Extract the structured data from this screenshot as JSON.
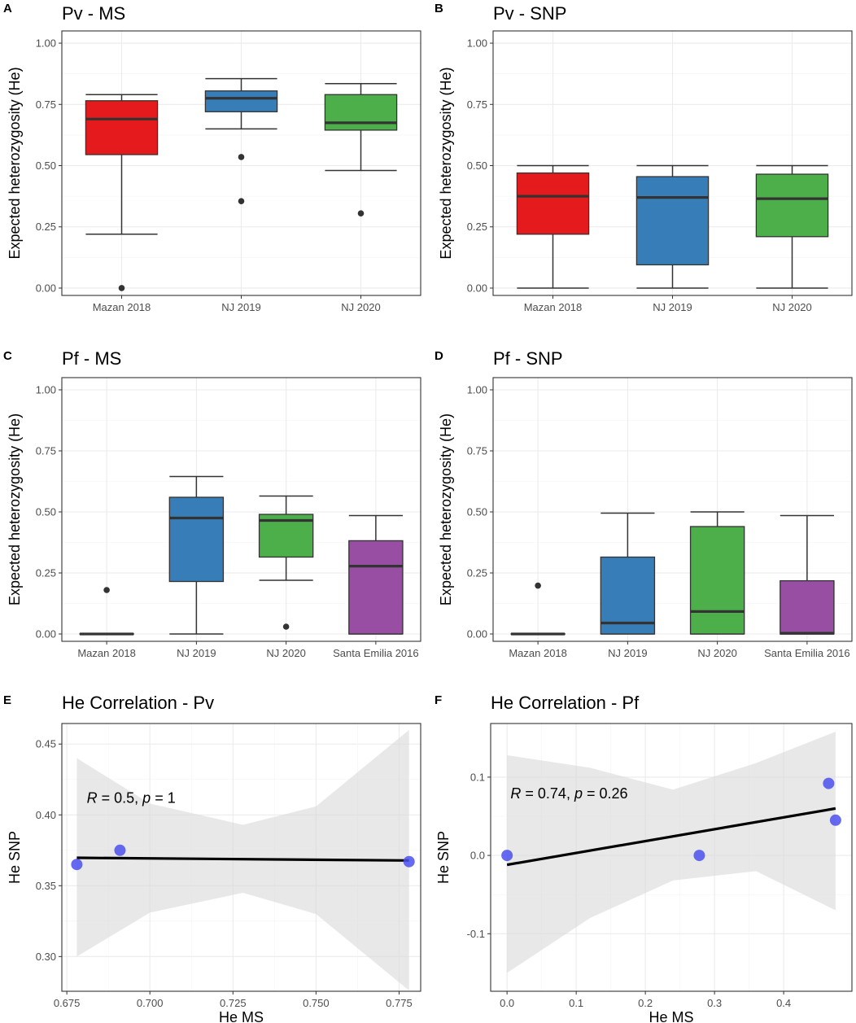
{
  "figure": {
    "chart_data": [
      {
        "panel": "A",
        "type": "box",
        "title": "Pv - MS",
        "ylabel": "Expected heterozygosity (He)",
        "xlabel": "",
        "ylim": [
          -0.03,
          1.05
        ],
        "yticks": [
          0,
          0.25,
          0.5,
          0.75,
          1
        ],
        "ytick_labels": [
          "0.00",
          "0.25",
          "0.50",
          "0.75",
          "1.00"
        ],
        "categories": [
          "Mazan 2018",
          "NJ 2019",
          "NJ 2020"
        ],
        "boxes": [
          {
            "category": "Mazan 2018",
            "color": "#e41a1c",
            "whisker_low": 0.22,
            "q1": 0.545,
            "median": 0.69,
            "q3": 0.765,
            "whisker_high": 0.79,
            "outliers": [
              0.0
            ]
          },
          {
            "category": "NJ 2019",
            "color": "#377eb8",
            "whisker_low": 0.65,
            "q1": 0.72,
            "median": 0.775,
            "q3": 0.805,
            "whisker_high": 0.855,
            "outliers": [
              0.535,
              0.355
            ]
          },
          {
            "category": "NJ 2020",
            "color": "#4daf4a",
            "whisker_low": 0.48,
            "q1": 0.645,
            "median": 0.675,
            "q3": 0.79,
            "whisker_high": 0.835,
            "outliers": [
              0.305
            ]
          }
        ]
      },
      {
        "panel": "B",
        "type": "box",
        "title": "Pv - SNP",
        "ylabel": "Expected heterozygosity (He)",
        "xlabel": "",
        "ylim": [
          -0.03,
          1.05
        ],
        "yticks": [
          0,
          0.25,
          0.5,
          0.75,
          1
        ],
        "ytick_labels": [
          "0.00",
          "0.25",
          "0.50",
          "0.75",
          "1.00"
        ],
        "categories": [
          "Mazan 2018",
          "NJ 2019",
          "NJ 2020"
        ],
        "boxes": [
          {
            "category": "Mazan 2018",
            "color": "#e41a1c",
            "whisker_low": 0.0,
            "q1": 0.22,
            "median": 0.375,
            "q3": 0.47,
            "whisker_high": 0.5,
            "outliers": []
          },
          {
            "category": "NJ 2019",
            "color": "#377eb8",
            "whisker_low": 0.0,
            "q1": 0.095,
            "median": 0.37,
            "q3": 0.455,
            "whisker_high": 0.5,
            "outliers": []
          },
          {
            "category": "NJ 2020",
            "color": "#4daf4a",
            "whisker_low": 0.0,
            "q1": 0.21,
            "median": 0.365,
            "q3": 0.465,
            "whisker_high": 0.5,
            "outliers": []
          }
        ]
      },
      {
        "panel": "C",
        "type": "box",
        "title": "Pf - MS",
        "ylabel": "Expected heterozygosity (He)",
        "xlabel": "",
        "ylim": [
          -0.03,
          1.05
        ],
        "yticks": [
          0,
          0.25,
          0.5,
          0.75,
          1
        ],
        "ytick_labels": [
          "0.00",
          "0.25",
          "0.50",
          "0.75",
          "1.00"
        ],
        "categories": [
          "Mazan 2018",
          "NJ 2019",
          "NJ 2020",
          "Santa Emilia 2016"
        ],
        "boxes": [
          {
            "category": "Mazan 2018",
            "color": "#e41a1c",
            "whisker_low": 0.0,
            "q1": 0.0,
            "median": 0.0,
            "q3": 0.0,
            "whisker_high": 0.0,
            "outliers": [
              0.18
            ]
          },
          {
            "category": "NJ 2019",
            "color": "#377eb8",
            "whisker_low": 0.0,
            "q1": 0.215,
            "median": 0.475,
            "q3": 0.56,
            "whisker_high": 0.645,
            "outliers": []
          },
          {
            "category": "NJ 2020",
            "color": "#4daf4a",
            "whisker_low": 0.22,
            "q1": 0.315,
            "median": 0.465,
            "q3": 0.49,
            "whisker_high": 0.565,
            "outliers": [
              0.03
            ]
          },
          {
            "category": "Santa Emilia 2016",
            "color": "#984ea3",
            "whisker_low": 0.0,
            "q1": 0.0,
            "median": 0.278,
            "q3": 0.382,
            "whisker_high": 0.485,
            "outliers": []
          }
        ]
      },
      {
        "panel": "D",
        "type": "box",
        "title": "Pf - SNP",
        "ylabel": "Expected heterozygosity (He)",
        "xlabel": "",
        "ylim": [
          -0.03,
          1.05
        ],
        "yticks": [
          0,
          0.25,
          0.5,
          0.75,
          1
        ],
        "ytick_labels": [
          "0.00",
          "0.25",
          "0.50",
          "0.75",
          "1.00"
        ],
        "categories": [
          "Mazan 2018",
          "NJ 2019",
          "NJ 2020",
          "Santa Emilia 2016"
        ],
        "boxes": [
          {
            "category": "Mazan 2018",
            "color": "#e41a1c",
            "whisker_low": 0.0,
            "q1": 0.0,
            "median": 0.0,
            "q3": 0.0,
            "whisker_high": 0.0,
            "outliers": [
              0.198
            ]
          },
          {
            "category": "NJ 2019",
            "color": "#377eb8",
            "whisker_low": 0.0,
            "q1": 0.0,
            "median": 0.045,
            "q3": 0.315,
            "whisker_high": 0.495,
            "outliers": []
          },
          {
            "category": "NJ 2020",
            "color": "#4daf4a",
            "whisker_low": 0.0,
            "q1": 0.0,
            "median": 0.092,
            "q3": 0.44,
            "whisker_high": 0.5,
            "outliers": []
          },
          {
            "category": "Santa Emilia 2016",
            "color": "#984ea3",
            "whisker_low": 0.0,
            "q1": 0.0,
            "median": 0.003,
            "q3": 0.218,
            "whisker_high": 0.485,
            "outliers": []
          }
        ]
      },
      {
        "panel": "E",
        "type": "scatter",
        "title": "He Correlation - Pv",
        "xlabel": "He MS",
        "ylabel": "He SNP",
        "xlim": [
          0.6735,
          0.7815
        ],
        "ylim": [
          0.2755,
          0.4645
        ],
        "xticks": [
          0.675,
          0.7,
          0.725,
          0.75,
          0.775
        ],
        "xtick_labels": [
          "0.675",
          "0.700",
          "0.725",
          "0.750",
          "0.775"
        ],
        "yticks": [
          0.3,
          0.35,
          0.4,
          0.45
        ],
        "ytick_labels": [
          "0.30",
          "0.35",
          "0.40",
          "0.45"
        ],
        "points": [
          {
            "x": 0.678,
            "y": 0.365
          },
          {
            "x": 0.691,
            "y": 0.375
          },
          {
            "x": 0.778,
            "y": 0.367
          }
        ],
        "point_color": "#4b50ef",
        "fit_line": {
          "x": [
            0.678,
            0.778
          ],
          "y": [
            0.3697,
            0.3678
          ]
        },
        "ci_band": {
          "x": [
            0.678,
            0.7,
            0.728,
            0.75,
            0.778
          ],
          "lower": [
            0.3,
            0.331,
            0.345,
            0.33,
            0.276
          ],
          "upper": [
            0.44,
            0.408,
            0.393,
            0.406,
            0.46
          ]
        },
        "annotation": {
          "r_symbol": "R",
          "r_text": " = 0.5, ",
          "p_symbol": "p",
          "p_text": " = 1",
          "x": 0.681,
          "y": 0.4085
        }
      },
      {
        "panel": "F",
        "type": "scatter",
        "title": "He Correlation - Pf",
        "xlabel": "He MS",
        "ylabel": "He SNP",
        "xlim": [
          -0.0237,
          0.4987
        ],
        "ylim": [
          -0.1735,
          0.1685
        ],
        "xticks": [
          0.0,
          0.1,
          0.2,
          0.3,
          0.4
        ],
        "xtick_labels": [
          "0.0",
          "0.1",
          "0.2",
          "0.3",
          "0.4"
        ],
        "yticks": [
          -0.1,
          0.0,
          0.1
        ],
        "ytick_labels": [
          "-0.1",
          "0.0",
          "0.1"
        ],
        "points": [
          {
            "x": 0.0,
            "y": 0.0
          },
          {
            "x": 0.278,
            "y": 0.0
          },
          {
            "x": 0.465,
            "y": 0.092
          },
          {
            "x": 0.475,
            "y": 0.045
          }
        ],
        "point_color": "#4b50ef",
        "fit_line": {
          "x": [
            0.0,
            0.475
          ],
          "y": [
            -0.012,
            0.06
          ]
        },
        "ci_band": {
          "x": [
            0.0,
            0.12,
            0.24,
            0.36,
            0.475
          ],
          "lower": [
            -0.15,
            -0.08,
            -0.032,
            -0.02,
            -0.07
          ],
          "upper": [
            0.128,
            0.112,
            0.084,
            0.118,
            0.158
          ]
        },
        "annotation": {
          "r_symbol": "R",
          "r_text": " = 0.74, ",
          "p_symbol": "p",
          "p_text": " = 0.26",
          "x": 0.005,
          "y": 0.073
        }
      }
    ]
  }
}
